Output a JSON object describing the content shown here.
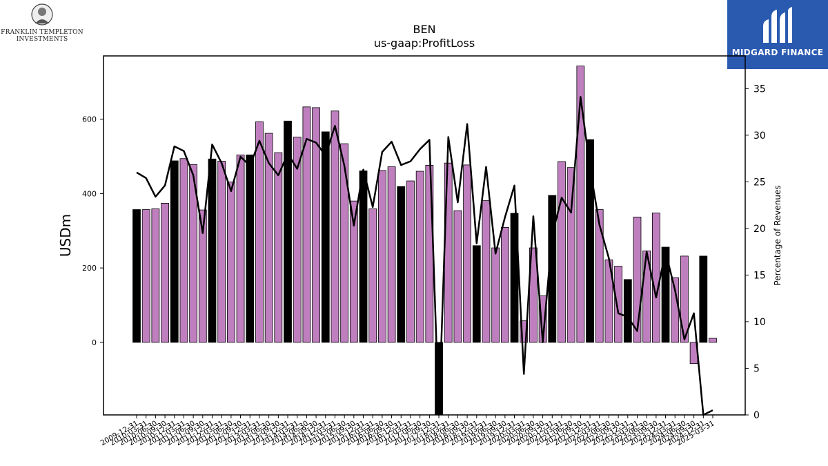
{
  "logos": {
    "left_line1": "FRANKLIN TEMPLETON",
    "left_line2": "INVESTMENTS",
    "right_text": "MIDGARD FINANCE"
  },
  "chart_data": {
    "type": "bar",
    "title": "BEN",
    "subtitle": "us-gaap:ProfitLoss",
    "ylabel": "USDm",
    "y2label": "Percentage of Revenues",
    "ylim": [
      -195,
      770
    ],
    "y2lim": [
      0,
      38.5
    ],
    "yticks": [
      0,
      200,
      400,
      600
    ],
    "y2ticks": [
      0,
      5,
      10,
      15,
      20,
      25,
      30,
      35
    ],
    "colors": {
      "bar_quarter": "#bf7fbf",
      "bar_annual": "#000000",
      "line": "#000000"
    },
    "categories": [
      "2009-12-31",
      "2010-03-31",
      "2010-06-30",
      "2010-09-30",
      "2010-12-31",
      "2011-03-31",
      "2011-06-30",
      "2011-09-30",
      "2011-12-31",
      "2012-03-31",
      "2012-06-30",
      "2012-09-30",
      "2012-12-31",
      "2013-03-31",
      "2013-06-30",
      "2013-09-30",
      "2013-12-31",
      "2014-03-31",
      "2014-06-30",
      "2014-09-30",
      "2014-12-31",
      "2015-03-31",
      "2015-06-30",
      "2015-09-30",
      "2015-12-31",
      "2016-03-31",
      "2016-06-30",
      "2016-09-30",
      "2016-12-31",
      "2017-03-31",
      "2017-06-30",
      "2017-09-30",
      "2017-12-31",
      "2018-03-31",
      "2018-06-30",
      "2018-09-30",
      "2018-12-31",
      "2019-03-31",
      "2019-06-30",
      "2019-09-30",
      "2019-12-31",
      "2020-03-31",
      "2020-06-30",
      "2020-09-30",
      "2020-12-31",
      "2021-03-31",
      "2021-06-30",
      "2021-09-30",
      "2021-12-31",
      "2022-03-31",
      "2022-06-30",
      "2022-09-30",
      "2022-12-31",
      "2023-03-31",
      "2023-06-30",
      "2023-09-30",
      "2023-12-31",
      "2024-03-31",
      "2024-06-30",
      "2024-09-30",
      "2024-12-31",
      "2025-03-31"
    ],
    "series": [
      {
        "values": [
          357,
          357,
          359,
          374,
          488,
          494,
          478,
          356,
          493,
          487,
          431,
          504,
          504,
          593,
          562,
          510,
          595,
          552,
          633,
          631,
          566,
          622,
          534,
          380,
          461,
          359,
          462,
          472,
          419,
          434,
          460,
          476,
          -195,
          482,
          354,
          477,
          260,
          381,
          254,
          309,
          347,
          58,
          254,
          125,
          395,
          486,
          470,
          743,
          545,
          357,
          222,
          205,
          169,
          337,
          246,
          348,
          256,
          174,
          232,
          -57,
          232,
          11
        ],
        "annual": [
          true,
          false,
          false,
          false,
          true,
          false,
          false,
          false,
          true,
          false,
          false,
          false,
          true,
          false,
          false,
          false,
          true,
          false,
          false,
          false,
          true,
          false,
          false,
          false,
          true,
          false,
          false,
          false,
          true,
          false,
          false,
          false,
          true,
          false,
          false,
          false,
          true,
          false,
          false,
          false,
          true,
          false,
          false,
          false,
          true,
          false,
          false,
          false,
          true,
          false,
          false,
          false,
          true,
          false,
          false,
          false,
          true,
          false,
          false,
          false,
          true,
          false
        ]
      },
      {
        "axis": "right",
        "values": [
          26.0,
          25.4,
          23.4,
          24.6,
          28.8,
          28.3,
          25.7,
          19.5,
          29.0,
          27.0,
          24.0,
          27.7,
          26.7,
          29.4,
          27.0,
          25.7,
          28.0,
          26.4,
          29.6,
          29.2,
          27.8,
          31.0,
          26.7,
          20.3,
          26.3,
          22.3,
          28.2,
          29.3,
          26.8,
          27.2,
          28.5,
          29.5,
          0,
          29.8,
          22.8,
          31.2,
          18.4,
          26.6,
          17.3,
          21.2,
          24.6,
          4.4,
          21.3,
          7.8,
          19.3,
          23.3,
          21.7,
          34.1,
          26.5,
          20.4,
          16.8,
          10.9,
          10.5,
          9.0,
          17.5,
          12.6,
          17.5,
          13.4,
          8.1,
          10.9,
          0,
          0.5
        ]
      }
    ],
    "legend": "none",
    "grid": false
  }
}
